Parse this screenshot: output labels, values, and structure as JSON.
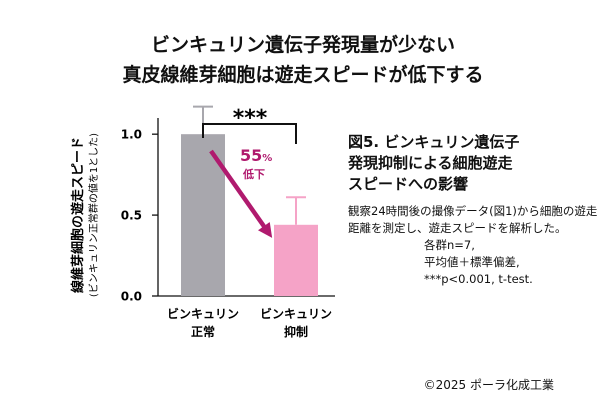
{
  "headline": {
    "line1": "ビンキュリン遺伝子発現量が少ない",
    "line2": "真皮線維芽細胞は遊走スピードが低下する"
  },
  "chart_data": {
    "type": "bar",
    "categories": [
      [
        "ビンキュリン",
        "正常"
      ],
      [
        "ビンキュリン",
        "抑制"
      ]
    ],
    "values": [
      1.0,
      0.44
    ],
    "error": [
      0.17,
      0.17
    ],
    "ylabel": "線維芽細胞の遊走スピード",
    "ylabel_sub": "(ビンキュリン正常群の値を1とした)",
    "ylim": [
      0,
      1.1
    ],
    "yticks": [
      "0.0",
      "0.5",
      "1.0"
    ],
    "significance": "***",
    "reduction_value": "55",
    "reduction_unit": "%",
    "reduction_label": "低下",
    "colors": {
      "normal": "#a8a7ad",
      "suppressed": "#f5a3c7",
      "accent": "#b01a6e"
    }
  },
  "caption": {
    "title_line1": "図5. ビンキュリン遺伝子",
    "title_line2": "発現抑制による細胞遊走",
    "title_line3": "スピードへの影響",
    "body": "観察24時間後の撮像データ(図1)から細胞の遊走距離を測定し、遊走スピードを解析した。",
    "stat_line1": "各群n=7,",
    "stat_line2": "平均値＋標準偏差,",
    "stat_line3": "***p<0.001, t-test."
  },
  "copyright": "©2025 ポーラ化成工業"
}
